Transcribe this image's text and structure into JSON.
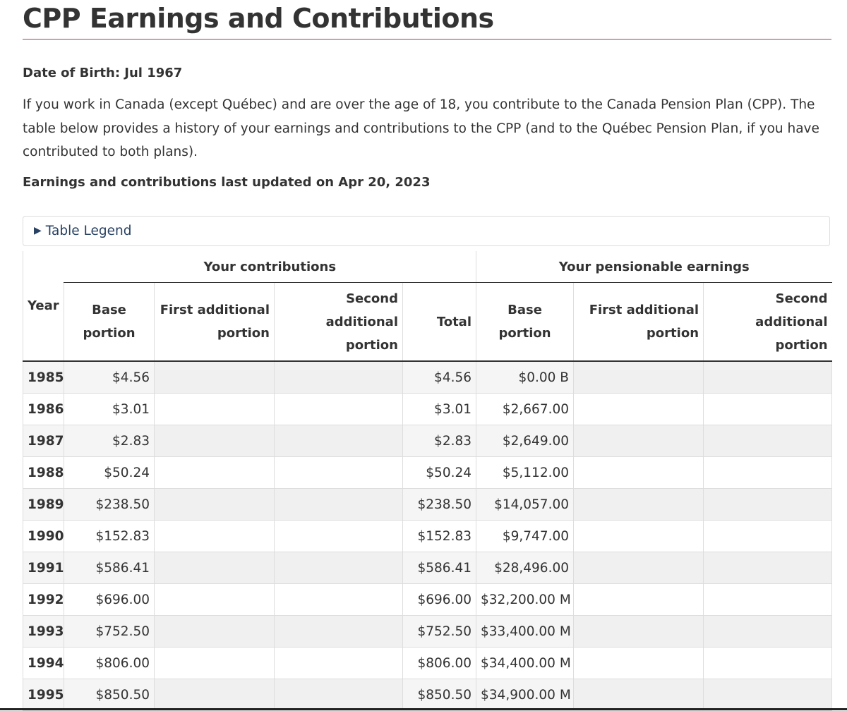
{
  "page": {
    "title": "CPP Earnings and Contributions",
    "dob": "Date of Birth: Jul 1967",
    "intro": "If you work in Canada (except Québec) and are over the age of 18, you contribute to the Canada Pension Plan (CPP). The table below provides a history of your earnings and contributions to the CPP (and to the Québec Pension Plan, if you have contributed to both plans).",
    "updated": "Earnings and contributions last updated on Apr 20, 2023",
    "legend": "Table Legend"
  },
  "table": {
    "year_header": "Year",
    "contributions_header": "Your contributions",
    "earnings_header": "Your pensionable earnings",
    "columns": {
      "base": "Base portion",
      "first": "First additional portion",
      "second": "Second additional portion",
      "total": "Total",
      "earn_base": "Base portion",
      "earn_first": "First additional portion",
      "earn_second": "Second additional portion"
    },
    "rows": [
      {
        "year": "1985",
        "base": "$4.56",
        "first": "",
        "second": "",
        "total": "$4.56",
        "earn_base": "$0.00 B",
        "earn_first": "",
        "earn_second": ""
      },
      {
        "year": "1986",
        "base": "$3.01",
        "first": "",
        "second": "",
        "total": "$3.01",
        "earn_base": "$2,667.00",
        "earn_first": "",
        "earn_second": ""
      },
      {
        "year": "1987",
        "base": "$2.83",
        "first": "",
        "second": "",
        "total": "$2.83",
        "earn_base": "$2,649.00",
        "earn_first": "",
        "earn_second": ""
      },
      {
        "year": "1988",
        "base": "$50.24",
        "first": "",
        "second": "",
        "total": "$50.24",
        "earn_base": "$5,112.00",
        "earn_first": "",
        "earn_second": ""
      },
      {
        "year": "1989",
        "base": "$238.50",
        "first": "",
        "second": "",
        "total": "$238.50",
        "earn_base": "$14,057.00",
        "earn_first": "",
        "earn_second": ""
      },
      {
        "year": "1990",
        "base": "$152.83",
        "first": "",
        "second": "",
        "total": "$152.83",
        "earn_base": "$9,747.00",
        "earn_first": "",
        "earn_second": ""
      },
      {
        "year": "1991",
        "base": "$586.41",
        "first": "",
        "second": "",
        "total": "$586.41",
        "earn_base": "$28,496.00",
        "earn_first": "",
        "earn_second": ""
      },
      {
        "year": "1992",
        "base": "$696.00",
        "first": "",
        "second": "",
        "total": "$696.00",
        "earn_base": "$32,200.00 M",
        "earn_first": "",
        "earn_second": ""
      },
      {
        "year": "1993",
        "base": "$752.50",
        "first": "",
        "second": "",
        "total": "$752.50",
        "earn_base": "$33,400.00 M",
        "earn_first": "",
        "earn_second": ""
      },
      {
        "year": "1994",
        "base": "$806.00",
        "first": "",
        "second": "",
        "total": "$806.00",
        "earn_base": "$34,400.00 M",
        "earn_first": "",
        "earn_second": ""
      },
      {
        "year": "1995",
        "base": "$850.50",
        "first": "",
        "second": "",
        "total": "$850.50",
        "earn_base": "$34,900.00 M",
        "earn_first": "",
        "earn_second": ""
      }
    ]
  }
}
